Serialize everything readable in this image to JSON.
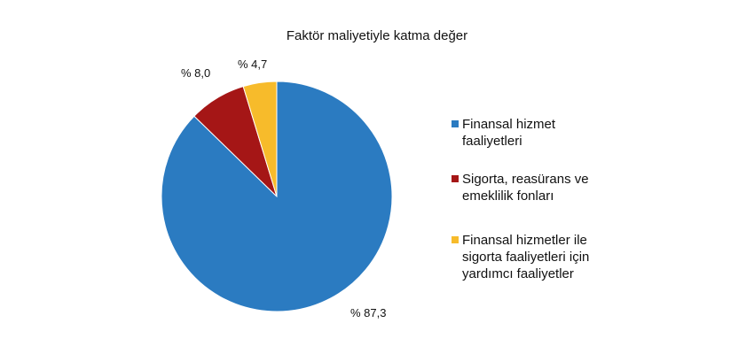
{
  "chart_data": {
    "type": "pie",
    "title": "Faktör maliyetiyle katma değer",
    "legend_position": "right",
    "slices": [
      {
        "label": "Finansal hizmet faaliyetleri",
        "value": 87.3,
        "data_label": "% 87,3",
        "color": "#2b7bc1"
      },
      {
        "label": "Sigorta, reasürans ve emeklilik fonları",
        "value": 8.0,
        "data_label": "% 8,0",
        "color": "#a51616"
      },
      {
        "label": "Finansal hizmetler ile sigorta faaliyetleri için yardımcı faaliyetler",
        "value": 4.7,
        "data_label": "% 4,7",
        "color": "#f7bb2b"
      }
    ]
  }
}
